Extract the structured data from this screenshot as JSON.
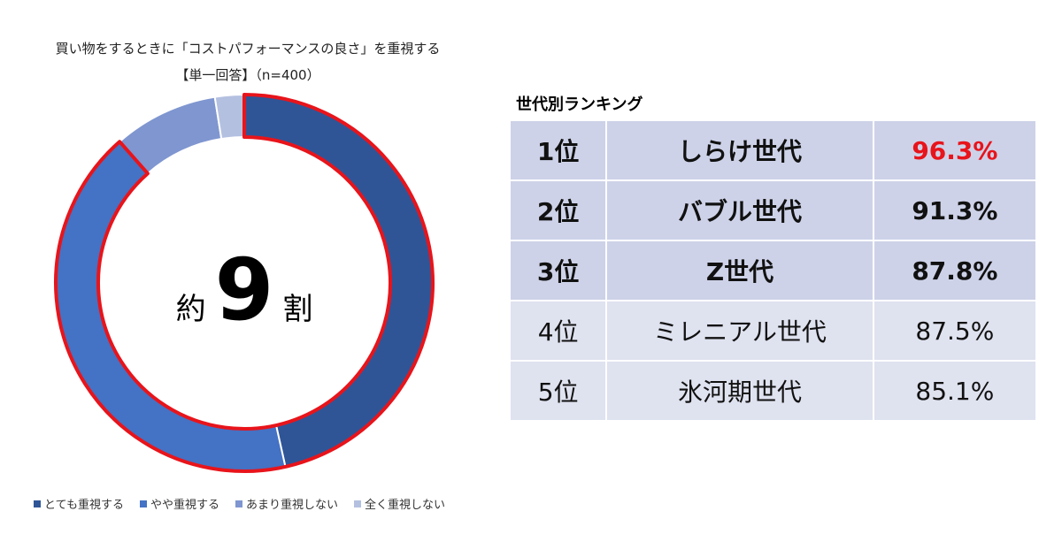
{
  "title": {
    "line1": "買い物をするときに「コストパフォーマンスの良さ」を重視する",
    "line2": "【単一回答】（n=400）"
  },
  "center": {
    "prefix": "約",
    "number": "9",
    "suffix": "割"
  },
  "colors": {
    "segments": [
      "#2f5597",
      "#4472c4",
      "#7f96d0",
      "#b4c0e0"
    ],
    "highlight_ring": "#e8141b",
    "highlight_text": "#e8141b"
  },
  "chart_data": {
    "type": "pie",
    "categories": [
      "とても重視する",
      "やや重視する",
      "あまり重視しない",
      "全く重視しない"
    ],
    "values": [
      46.5,
      42.0,
      9.0,
      2.5
    ],
    "legend_position": "bottom"
  },
  "ranking": {
    "title": "世代別ランキング",
    "rows": [
      {
        "rank": "1位",
        "generation": "しらけ世代",
        "value": "96.3%"
      },
      {
        "rank": "2位",
        "generation": "バブル世代",
        "value": "91.3%"
      },
      {
        "rank": "3位",
        "generation": "Z世代",
        "value": "87.8%"
      },
      {
        "rank": "4位",
        "generation": "ミレニアル世代",
        "value": "87.5%"
      },
      {
        "rank": "5位",
        "generation": "氷河期世代",
        "value": "85.1%"
      }
    ]
  }
}
